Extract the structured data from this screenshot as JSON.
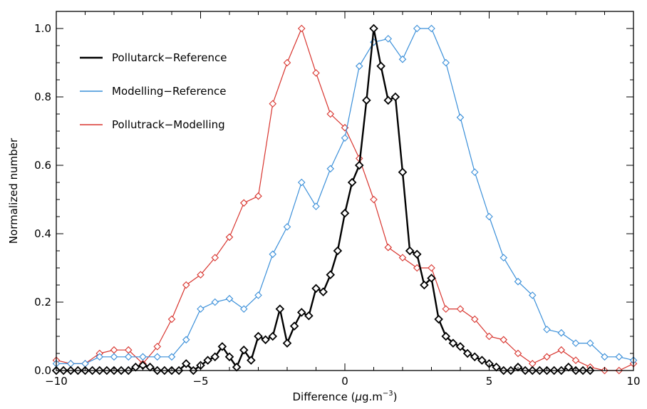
{
  "chart_data": {
    "type": "line",
    "title": "",
    "xlabel": "Difference (μg.m⁻³)",
    "xlabel_parts": {
      "pre": "Difference (",
      "mu": "μ",
      "unit": "g.m",
      "sup": "−3",
      "post": ")"
    },
    "ylabel": "Normalized number",
    "xlim": [
      -10,
      10
    ],
    "ylim": [
      0,
      1.05
    ],
    "xticks": [
      -10,
      -5,
      0,
      5,
      10
    ],
    "xtick_labels": [
      "−10",
      "−5",
      "0",
      "5",
      "10"
    ],
    "yticks": [
      0,
      0.2,
      0.4,
      0.6,
      0.8,
      1.0
    ],
    "ytick_labels": [
      "0.0",
      "0.2",
      "0.4",
      "0.6",
      "0.8",
      "1.0"
    ],
    "grid": false,
    "legend_position": "top-left",
    "marker": "diamond",
    "series": [
      {
        "name": "Pollutarck−Reference",
        "color": "#000000",
        "line_width": 2.4,
        "points": [
          [
            -10,
            0.0
          ],
          [
            -9.75,
            0.0
          ],
          [
            -9.5,
            0.0
          ],
          [
            -9.25,
            0.0
          ],
          [
            -9,
            0.0
          ],
          [
            -8.75,
            0.0
          ],
          [
            -8.5,
            0.0
          ],
          [
            -8.25,
            0.0
          ],
          [
            -8,
            0.0
          ],
          [
            -7.75,
            0.0
          ],
          [
            -7.5,
            0.0
          ],
          [
            -7.25,
            0.01
          ],
          [
            -7,
            0.015
          ],
          [
            -6.75,
            0.01
          ],
          [
            -6.5,
            0.0
          ],
          [
            -6.25,
            0.0
          ],
          [
            -6,
            0.0
          ],
          [
            -5.75,
            0.0
          ],
          [
            -5.5,
            0.02
          ],
          [
            -5.25,
            0.0
          ],
          [
            -5,
            0.015
          ],
          [
            -4.75,
            0.03
          ],
          [
            -4.5,
            0.04
          ],
          [
            -4.25,
            0.07
          ],
          [
            -4,
            0.04
          ],
          [
            -3.75,
            0.01
          ],
          [
            -3.5,
            0.06
          ],
          [
            -3.25,
            0.03
          ],
          [
            -3,
            0.1
          ],
          [
            -2.75,
            0.09
          ],
          [
            -2.5,
            0.1
          ],
          [
            -2.25,
            0.18
          ],
          [
            -2,
            0.08
          ],
          [
            -1.75,
            0.13
          ],
          [
            -1.5,
            0.17
          ],
          [
            -1.25,
            0.16
          ],
          [
            -1,
            0.24
          ],
          [
            -0.75,
            0.23
          ],
          [
            -0.5,
            0.28
          ],
          [
            -0.25,
            0.35
          ],
          [
            0,
            0.46
          ],
          [
            0.25,
            0.55
          ],
          [
            0.5,
            0.6
          ],
          [
            0.75,
            0.79
          ],
          [
            1,
            1.0
          ],
          [
            1.25,
            0.89
          ],
          [
            1.5,
            0.79
          ],
          [
            1.75,
            0.8
          ],
          [
            2,
            0.58
          ],
          [
            2.25,
            0.35
          ],
          [
            2.5,
            0.34
          ],
          [
            2.75,
            0.25
          ],
          [
            3,
            0.27
          ],
          [
            3.25,
            0.15
          ],
          [
            3.5,
            0.1
          ],
          [
            3.75,
            0.08
          ],
          [
            4,
            0.07
          ],
          [
            4.25,
            0.05
          ],
          [
            4.5,
            0.04
          ],
          [
            4.75,
            0.03
          ],
          [
            5,
            0.02
          ],
          [
            5.25,
            0.01
          ],
          [
            5.5,
            0.0
          ],
          [
            5.75,
            0.0
          ],
          [
            6,
            0.01
          ],
          [
            6.25,
            0.0
          ],
          [
            6.5,
            0.0
          ],
          [
            6.75,
            0.0
          ],
          [
            7,
            0.0
          ],
          [
            7.25,
            0.0
          ],
          [
            7.5,
            0.0
          ],
          [
            7.75,
            0.01
          ],
          [
            8,
            0.0
          ],
          [
            8.25,
            0.0
          ],
          [
            8.5,
            0.0
          ]
        ]
      },
      {
        "name": "Modelling−Reference",
        "color": "#3a8fd9",
        "line_width": 1.2,
        "points": [
          [
            -10,
            0.02
          ],
          [
            -9.5,
            0.02
          ],
          [
            -9,
            0.02
          ],
          [
            -8.5,
            0.04
          ],
          [
            -8,
            0.04
          ],
          [
            -7.5,
            0.04
          ],
          [
            -7,
            0.04
          ],
          [
            -6.5,
            0.04
          ],
          [
            -6,
            0.04
          ],
          [
            -5.5,
            0.09
          ],
          [
            -5,
            0.18
          ],
          [
            -4.5,
            0.2
          ],
          [
            -4,
            0.21
          ],
          [
            -3.5,
            0.18
          ],
          [
            -3,
            0.22
          ],
          [
            -2.5,
            0.34
          ],
          [
            -2,
            0.42
          ],
          [
            -1.5,
            0.55
          ],
          [
            -1,
            0.48
          ],
          [
            -0.5,
            0.59
          ],
          [
            0,
            0.68
          ],
          [
            0.5,
            0.89
          ],
          [
            1,
            0.96
          ],
          [
            1.5,
            0.97
          ],
          [
            2,
            0.91
          ],
          [
            2.5,
            1.0
          ],
          [
            3,
            1.0
          ],
          [
            3.5,
            0.9
          ],
          [
            4,
            0.74
          ],
          [
            4.5,
            0.58
          ],
          [
            5,
            0.45
          ],
          [
            5.5,
            0.33
          ],
          [
            6,
            0.26
          ],
          [
            6.5,
            0.22
          ],
          [
            7,
            0.12
          ],
          [
            7.5,
            0.11
          ],
          [
            8,
            0.08
          ],
          [
            8.5,
            0.08
          ],
          [
            9,
            0.04
          ],
          [
            9.5,
            0.04
          ],
          [
            10,
            0.03
          ]
        ]
      },
      {
        "name": "Pollutrack−Modelling",
        "color": "#d8342e",
        "line_width": 1.2,
        "points": [
          [
            -10,
            0.03
          ],
          [
            -9.5,
            0.02
          ],
          [
            -9,
            0.02
          ],
          [
            -8.5,
            0.05
          ],
          [
            -8,
            0.06
          ],
          [
            -7.5,
            0.06
          ],
          [
            -7,
            0.02
          ],
          [
            -6.5,
            0.07
          ],
          [
            -6,
            0.15
          ],
          [
            -5.5,
            0.25
          ],
          [
            -5,
            0.28
          ],
          [
            -4.5,
            0.33
          ],
          [
            -4,
            0.39
          ],
          [
            -3.5,
            0.49
          ],
          [
            -3,
            0.51
          ],
          [
            -2.5,
            0.78
          ],
          [
            -2,
            0.9
          ],
          [
            -1.5,
            1.0
          ],
          [
            -1,
            0.87
          ],
          [
            -0.5,
            0.75
          ],
          [
            0,
            0.71
          ],
          [
            0.5,
            0.62
          ],
          [
            1,
            0.5
          ],
          [
            1.5,
            0.36
          ],
          [
            2,
            0.33
          ],
          [
            2.5,
            0.3
          ],
          [
            3,
            0.3
          ],
          [
            3.5,
            0.18
          ],
          [
            4,
            0.18
          ],
          [
            4.5,
            0.15
          ],
          [
            5,
            0.1
          ],
          [
            5.5,
            0.09
          ],
          [
            6,
            0.05
          ],
          [
            6.5,
            0.02
          ],
          [
            7,
            0.04
          ],
          [
            7.5,
            0.06
          ],
          [
            8,
            0.03
          ],
          [
            8.5,
            0.01
          ],
          [
            9,
            0.0
          ],
          [
            9.5,
            0.0
          ],
          [
            10,
            0.02
          ]
        ]
      }
    ]
  }
}
